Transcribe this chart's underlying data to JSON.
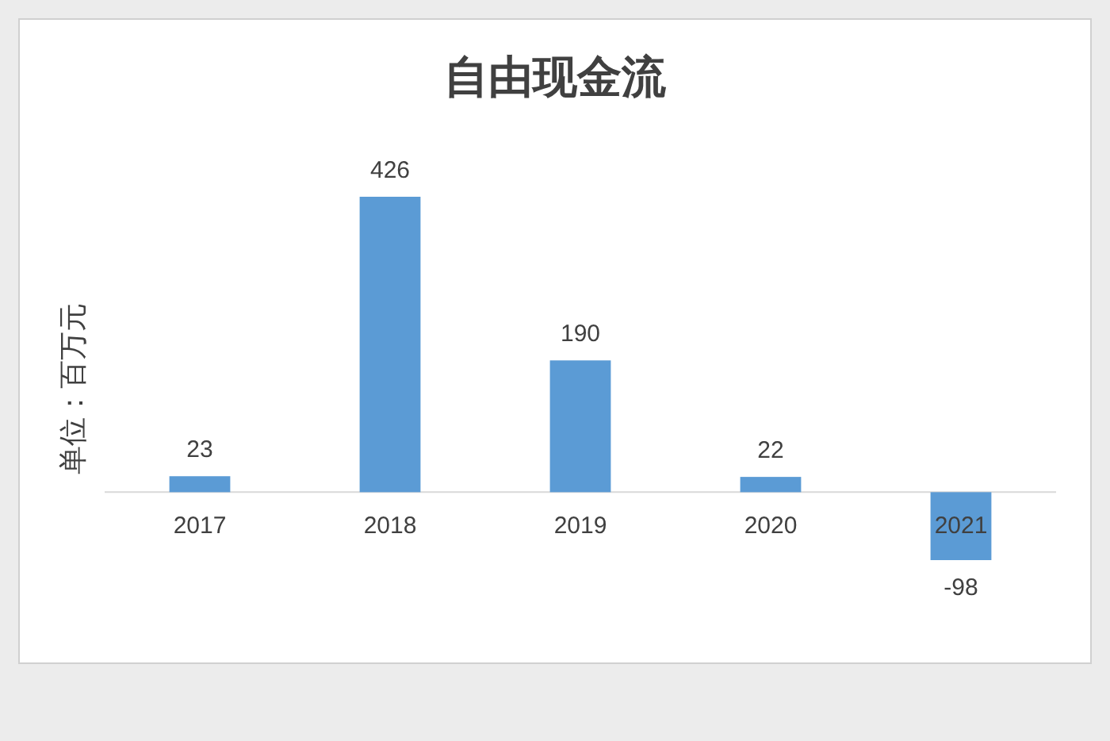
{
  "chart_data": {
    "type": "bar",
    "title": "自由现金流",
    "ylabel": "单位：百万元",
    "categories": [
      "2017",
      "2018",
      "2019",
      "2020",
      "2021"
    ],
    "values": [
      23,
      426,
      190,
      22,
      -98
    ],
    "color": "#5b9bd5",
    "data_labels": true
  }
}
